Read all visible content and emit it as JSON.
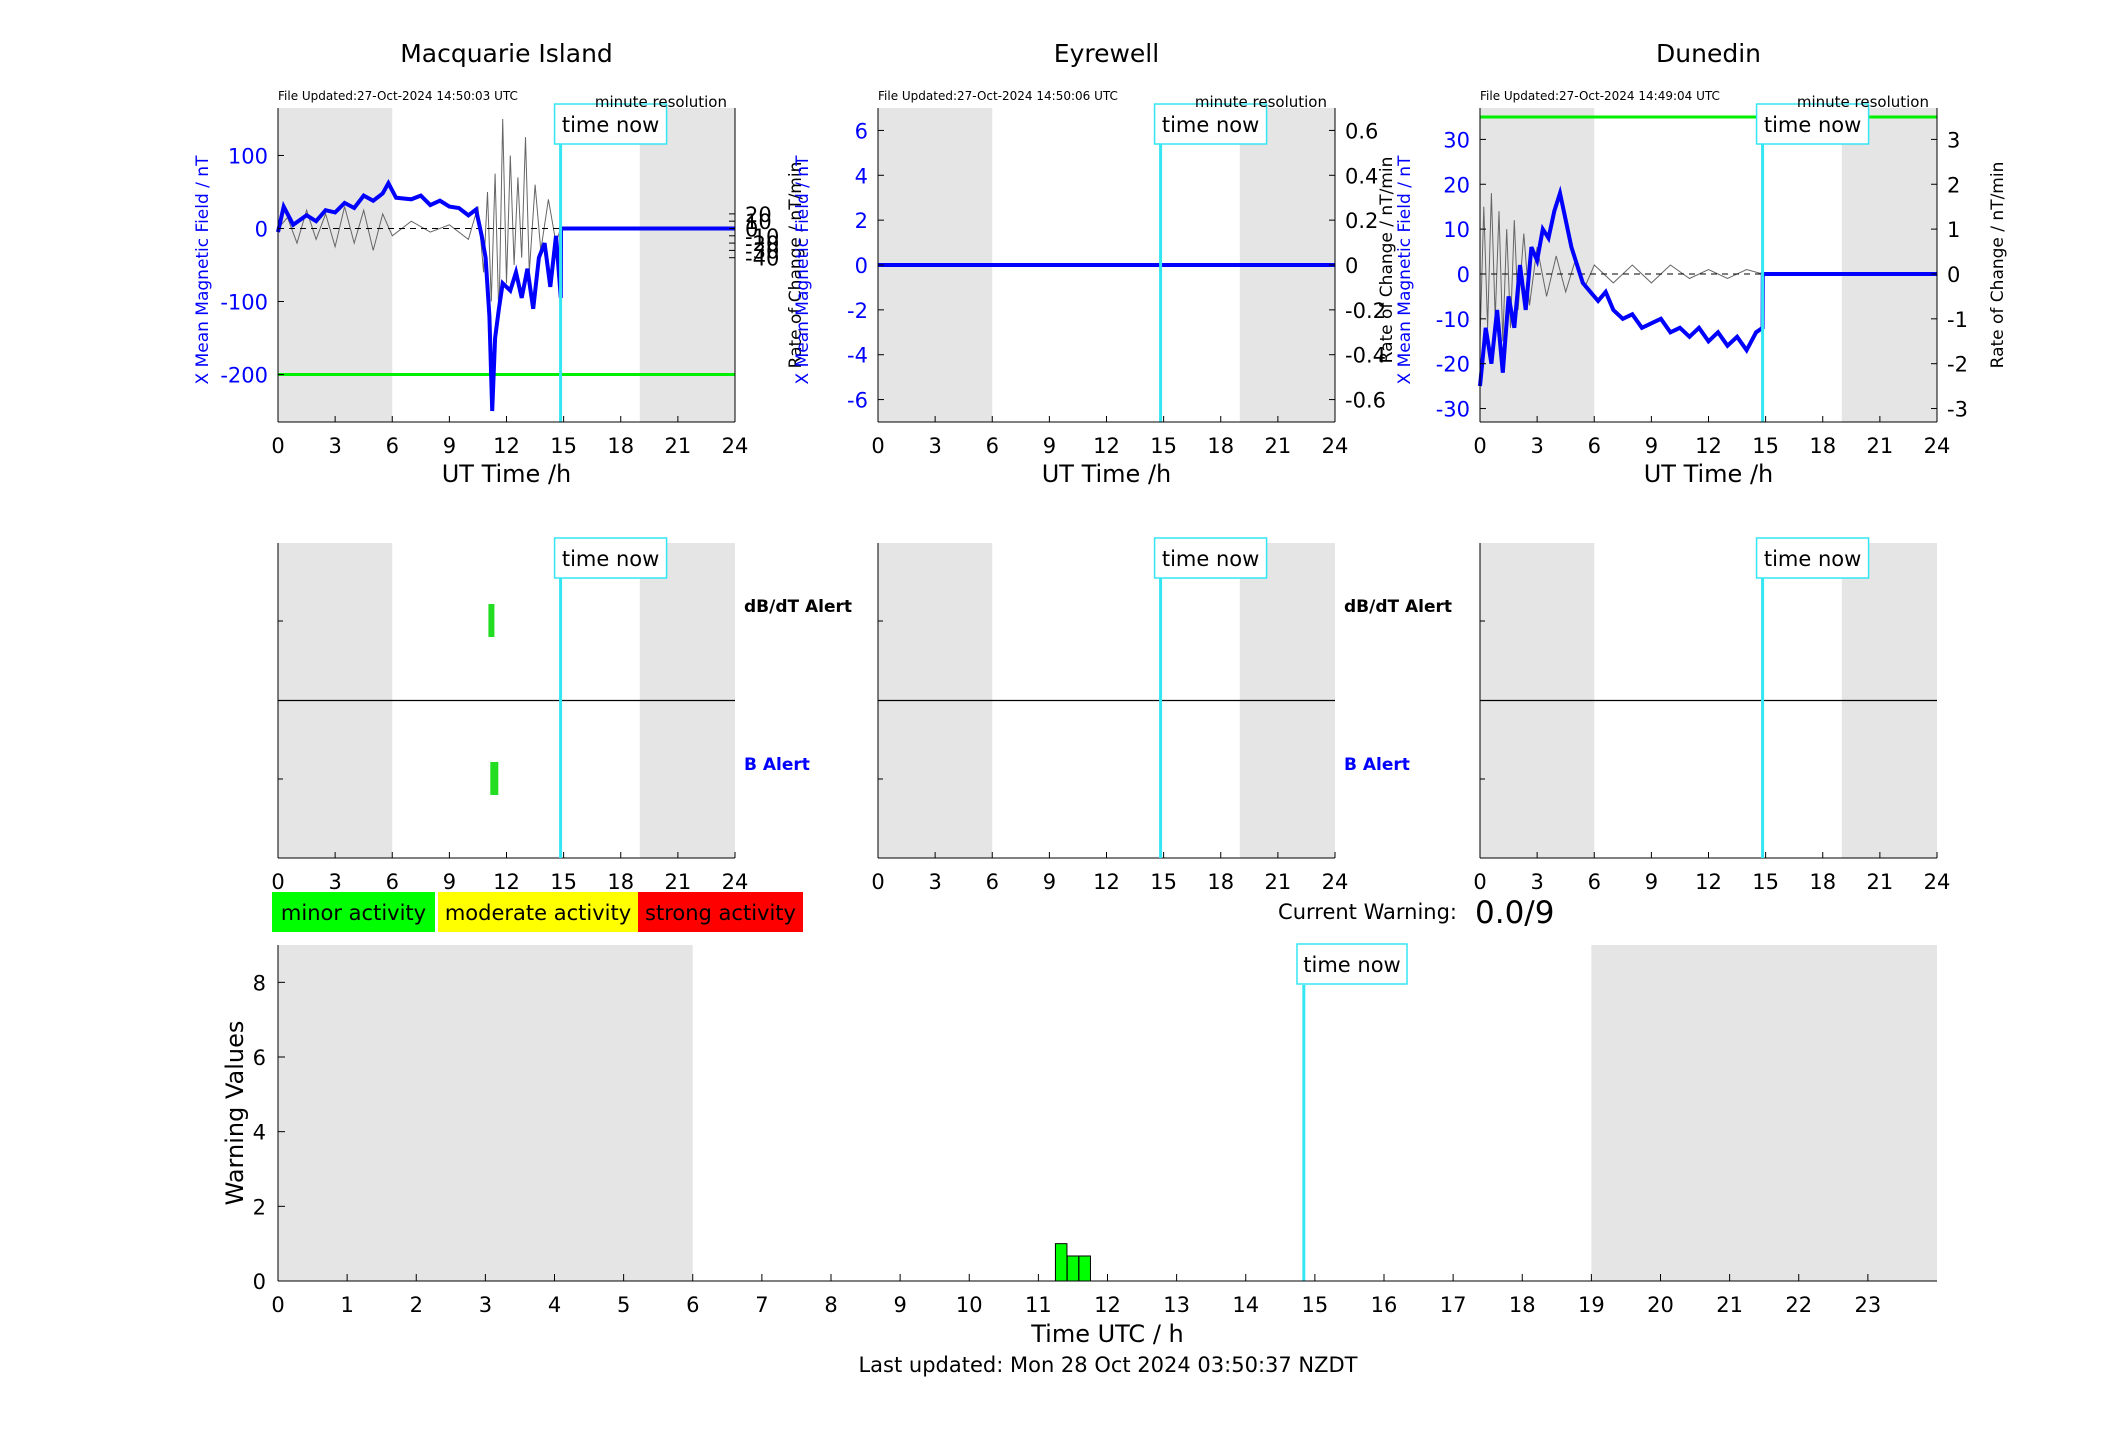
{
  "footer": "Last updated: Mon 28 Oct 2024 03:50:37 NZDT",
  "time_now_label": "time now",
  "time_now_utc": 14.84,
  "night_shading": [
    [
      0,
      6
    ],
    [
      19,
      24
    ]
  ],
  "colors": {
    "field": "#0000ff",
    "rate": "#666666",
    "threshold": "#00ee00",
    "now": "#33e6f2",
    "shade": "#e5e5e5",
    "minor": "#00ff00",
    "moderate": "#ffff00",
    "strong": "#ff0000"
  },
  "stations": [
    {
      "name": "Macquarie Island",
      "file_updated": "File Updated:27-Oct-2024 14:50:03 UTC",
      "resolution": "minute resolution",
      "ylabel_left": "X Mean Magnetic Field / nT",
      "ylabel_right": "Rate of Change / nT/min",
      "xlabel": "UT Time /h",
      "left_ylim": [
        -265,
        165
      ],
      "left_ticks": [
        -200,
        -100,
        0,
        100
      ],
      "right_ticks": [
        -40,
        -30,
        -20,
        -10,
        0,
        10,
        20
      ],
      "right_tick_labels": [
        "-40",
        "-30",
        "-20",
        "-10",
        "0",
        "10",
        "20"
      ],
      "right_scale": 5,
      "threshold": -200,
      "field_series": [
        [
          0,
          -5
        ],
        [
          0.3,
          30
        ],
        [
          0.8,
          5
        ],
        [
          1.5,
          18
        ],
        [
          2,
          10
        ],
        [
          2.5,
          25
        ],
        [
          3,
          22
        ],
        [
          3.5,
          35
        ],
        [
          4,
          28
        ],
        [
          4.5,
          45
        ],
        [
          5,
          38
        ],
        [
          5.5,
          48
        ],
        [
          5.8,
          62
        ],
        [
          6.2,
          42
        ],
        [
          7,
          40
        ],
        [
          7.5,
          45
        ],
        [
          8,
          32
        ],
        [
          8.5,
          38
        ],
        [
          9,
          30
        ],
        [
          9.5,
          28
        ],
        [
          10,
          18
        ],
        [
          10.4,
          26
        ],
        [
          10.7,
          -10
        ],
        [
          10.9,
          -40
        ],
        [
          11.1,
          -120
        ],
        [
          11.25,
          -250
        ],
        [
          11.4,
          -150
        ],
        [
          11.6,
          -110
        ],
        [
          11.8,
          -75
        ],
        [
          12.2,
          -85
        ],
        [
          12.5,
          -60
        ],
        [
          12.8,
          -95
        ],
        [
          13.1,
          -55
        ],
        [
          13.4,
          -110
        ],
        [
          13.7,
          -40
        ],
        [
          14.0,
          -20
        ],
        [
          14.3,
          -80
        ],
        [
          14.6,
          -10
        ],
        [
          14.85,
          -95
        ],
        [
          14.86,
          0
        ],
        [
          24,
          0
        ]
      ],
      "rate_series": [
        [
          0,
          0
        ],
        [
          0.5,
          3
        ],
        [
          1,
          -4
        ],
        [
          1.5,
          5
        ],
        [
          2,
          -3
        ],
        [
          2.5,
          4
        ],
        [
          3,
          -5
        ],
        [
          3.5,
          6
        ],
        [
          4,
          -4
        ],
        [
          4.5,
          5
        ],
        [
          5,
          -6
        ],
        [
          5.5,
          4
        ],
        [
          6,
          -2
        ],
        [
          7,
          2
        ],
        [
          8,
          -1
        ],
        [
          9,
          1
        ],
        [
          10,
          -3
        ],
        [
          10.5,
          6
        ],
        [
          10.8,
          -12
        ],
        [
          11.0,
          10
        ],
        [
          11.2,
          -20
        ],
        [
          11.4,
          15
        ],
        [
          11.6,
          -25
        ],
        [
          11.8,
          30
        ],
        [
          12.0,
          -15
        ],
        [
          12.2,
          20
        ],
        [
          12.4,
          -10
        ],
        [
          12.6,
          14
        ],
        [
          12.8,
          -8
        ],
        [
          13.0,
          25
        ],
        [
          13.2,
          -12
        ],
        [
          13.5,
          12
        ],
        [
          13.8,
          -6
        ],
        [
          14.2,
          8
        ],
        [
          14.6,
          -4
        ],
        [
          14.84,
          0
        ]
      ],
      "ticks_x": [
        0,
        3,
        6,
        9,
        12,
        15,
        18,
        21,
        24
      ],
      "alerts": {
        "dbdt": [
          11.05,
          11.2
        ],
        "b": [
          11.15,
          11.55
        ]
      }
    },
    {
      "name": "Eyrewell",
      "file_updated": "File Updated:27-Oct-2024 14:50:06 UTC",
      "resolution": "minute resolution",
      "ylabel_left": "X Mean Magnetic Field / nT",
      "ylabel_right": "",
      "xlabel": "UT Time /h",
      "left_ylim": [
        -7,
        7
      ],
      "left_ticks": [
        -6,
        -4,
        -2,
        0,
        2,
        4,
        6
      ],
      "right_ticks": [
        -6,
        -4,
        -2,
        0,
        2,
        4,
        6
      ],
      "right_tick_labels": [
        "-0.6",
        "-0.4",
        "-0.2",
        "0",
        "0.2",
        "0.4",
        "0.6"
      ],
      "right_scale": 0.1,
      "threshold": null,
      "field_series": [
        [
          0,
          0
        ],
        [
          24,
          0
        ]
      ],
      "rate_series": [],
      "ticks_x": [
        0,
        3,
        6,
        9,
        12,
        15,
        18,
        21,
        24
      ],
      "alerts": {
        "dbdt": null,
        "b": null
      }
    },
    {
      "name": "Dunedin",
      "file_updated": "File Updated:27-Oct-2024 14:49:04 UTC",
      "resolution": "minute resolution",
      "ylabel_left": "X Mean Magnetic Field / nT",
      "ylabel_right": "Rate of Change / nT/min",
      "ylabel_mid": "Rate of Change / nT/min",
      "xlabel": "UT Time /h",
      "left_ylim": [
        -33,
        37
      ],
      "left_ticks": [
        -30,
        -20,
        -10,
        0,
        10,
        20,
        30
      ],
      "right_ticks": [
        -30,
        -20,
        -10,
        0,
        10,
        20,
        30
      ],
      "right_tick_labels": [
        "-3",
        "-2",
        "-1",
        "0",
        "1",
        "2",
        "3"
      ],
      "right_scale": 0.1,
      "threshold": 35,
      "field_series": [
        [
          0,
          -25
        ],
        [
          0.3,
          -12
        ],
        [
          0.6,
          -20
        ],
        [
          0.9,
          -8
        ],
        [
          1.2,
          -22
        ],
        [
          1.5,
          -5
        ],
        [
          1.8,
          -12
        ],
        [
          2.1,
          2
        ],
        [
          2.4,
          -8
        ],
        [
          2.7,
          6
        ],
        [
          3.0,
          3
        ],
        [
          3.3,
          10
        ],
        [
          3.6,
          8
        ],
        [
          3.9,
          14
        ],
        [
          4.2,
          18
        ],
        [
          4.5,
          12
        ],
        [
          4.8,
          6
        ],
        [
          5.1,
          2
        ],
        [
          5.4,
          -2
        ],
        [
          5.8,
          -4
        ],
        [
          6.2,
          -6
        ],
        [
          6.6,
          -4
        ],
        [
          7,
          -8
        ],
        [
          7.5,
          -10
        ],
        [
          8,
          -9
        ],
        [
          8.5,
          -12
        ],
        [
          9,
          -11
        ],
        [
          9.5,
          -10
        ],
        [
          10,
          -13
        ],
        [
          10.5,
          -12
        ],
        [
          11,
          -14
        ],
        [
          11.5,
          -12
        ],
        [
          12,
          -15
        ],
        [
          12.5,
          -13
        ],
        [
          13,
          -16
        ],
        [
          13.5,
          -14
        ],
        [
          14,
          -17
        ],
        [
          14.5,
          -13
        ],
        [
          14.84,
          -12
        ],
        [
          14.85,
          0
        ],
        [
          24,
          0
        ]
      ],
      "rate_series": [
        [
          0,
          -15
        ],
        [
          0.2,
          15
        ],
        [
          0.4,
          -12
        ],
        [
          0.6,
          18
        ],
        [
          0.8,
          -10
        ],
        [
          1.0,
          14
        ],
        [
          1.2,
          -15
        ],
        [
          1.4,
          10
        ],
        [
          1.6,
          -12
        ],
        [
          1.8,
          12
        ],
        [
          2.0,
          -8
        ],
        [
          2.3,
          9
        ],
        [
          2.6,
          -7
        ],
        [
          3.0,
          6
        ],
        [
          3.5,
          -5
        ],
        [
          4.0,
          4
        ],
        [
          4.5,
          -4
        ],
        [
          5.0,
          3
        ],
        [
          5.5,
          -3
        ],
        [
          6,
          2
        ],
        [
          7,
          -2
        ],
        [
          8,
          2
        ],
        [
          9,
          -2
        ],
        [
          10,
          2
        ],
        [
          11,
          -1
        ],
        [
          12,
          1
        ],
        [
          13,
          -1
        ],
        [
          14,
          1
        ],
        [
          14.84,
          0
        ]
      ],
      "ticks_x": [
        0,
        3,
        6,
        9,
        12,
        15,
        18,
        21,
        24
      ],
      "alerts": {
        "dbdt": null,
        "b": null
      }
    }
  ],
  "alert_labels": {
    "dbdt": "dB/dT Alert",
    "b": "B Alert"
  },
  "legend": [
    {
      "label": "minor activity",
      "color": "#00ff00"
    },
    {
      "label": "moderate activity",
      "color": "#ffff00"
    },
    {
      "label": "strong activity",
      "color": "#ff0000"
    }
  ],
  "current_warning_label": "Current Warning:",
  "current_warning_value": "0.0/9",
  "chart_data": {
    "type": "bar",
    "title": "",
    "xlabel": "Time UTC / h",
    "ylabel": "Warning Values",
    "xlim": [
      0,
      24
    ],
    "ylim": [
      0,
      9
    ],
    "xticks": [
      0,
      1,
      2,
      3,
      4,
      5,
      6,
      7,
      8,
      9,
      10,
      11,
      12,
      13,
      14,
      15,
      16,
      17,
      18,
      19,
      20,
      21,
      22,
      23
    ],
    "yticks": [
      0,
      2,
      4,
      6,
      8
    ],
    "bars": [
      {
        "x": 11.33,
        "value": 1.0
      },
      {
        "x": 11.5,
        "value": 0.67
      },
      {
        "x": 11.67,
        "value": 0.67
      }
    ]
  }
}
